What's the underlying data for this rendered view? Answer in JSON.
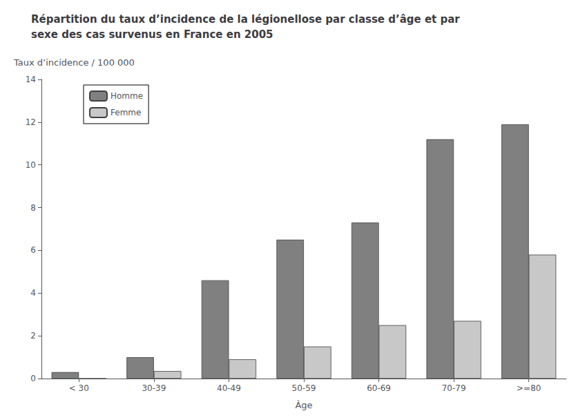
{
  "chart_data": {
    "type": "bar",
    "title": "Répartition du taux d’incidence de la légionellose par classe d’âge et par\nsexe des cas survenus en France en 2005",
    "ylabel": "Taux d’incidence / 100 000",
    "xlabel": "Âge",
    "categories": [
      "< 30",
      "30-39",
      "40-49",
      "50-59",
      "60-69",
      "70-79",
      ">=80"
    ],
    "series": [
      {
        "name": "Homme",
        "color": "#808080",
        "values": [
          0.3,
          1.0,
          4.6,
          6.5,
          7.3,
          11.2,
          11.9
        ]
      },
      {
        "name": "Femme",
        "color": "#c8c8c8",
        "values": [
          0.0,
          0.35,
          0.9,
          1.5,
          2.5,
          2.7,
          5.8
        ]
      }
    ],
    "ylim": [
      0,
      14
    ],
    "yticks": [
      0,
      2,
      4,
      6,
      8,
      10,
      12,
      14
    ],
    "grid": false,
    "legend": "upper left"
  }
}
